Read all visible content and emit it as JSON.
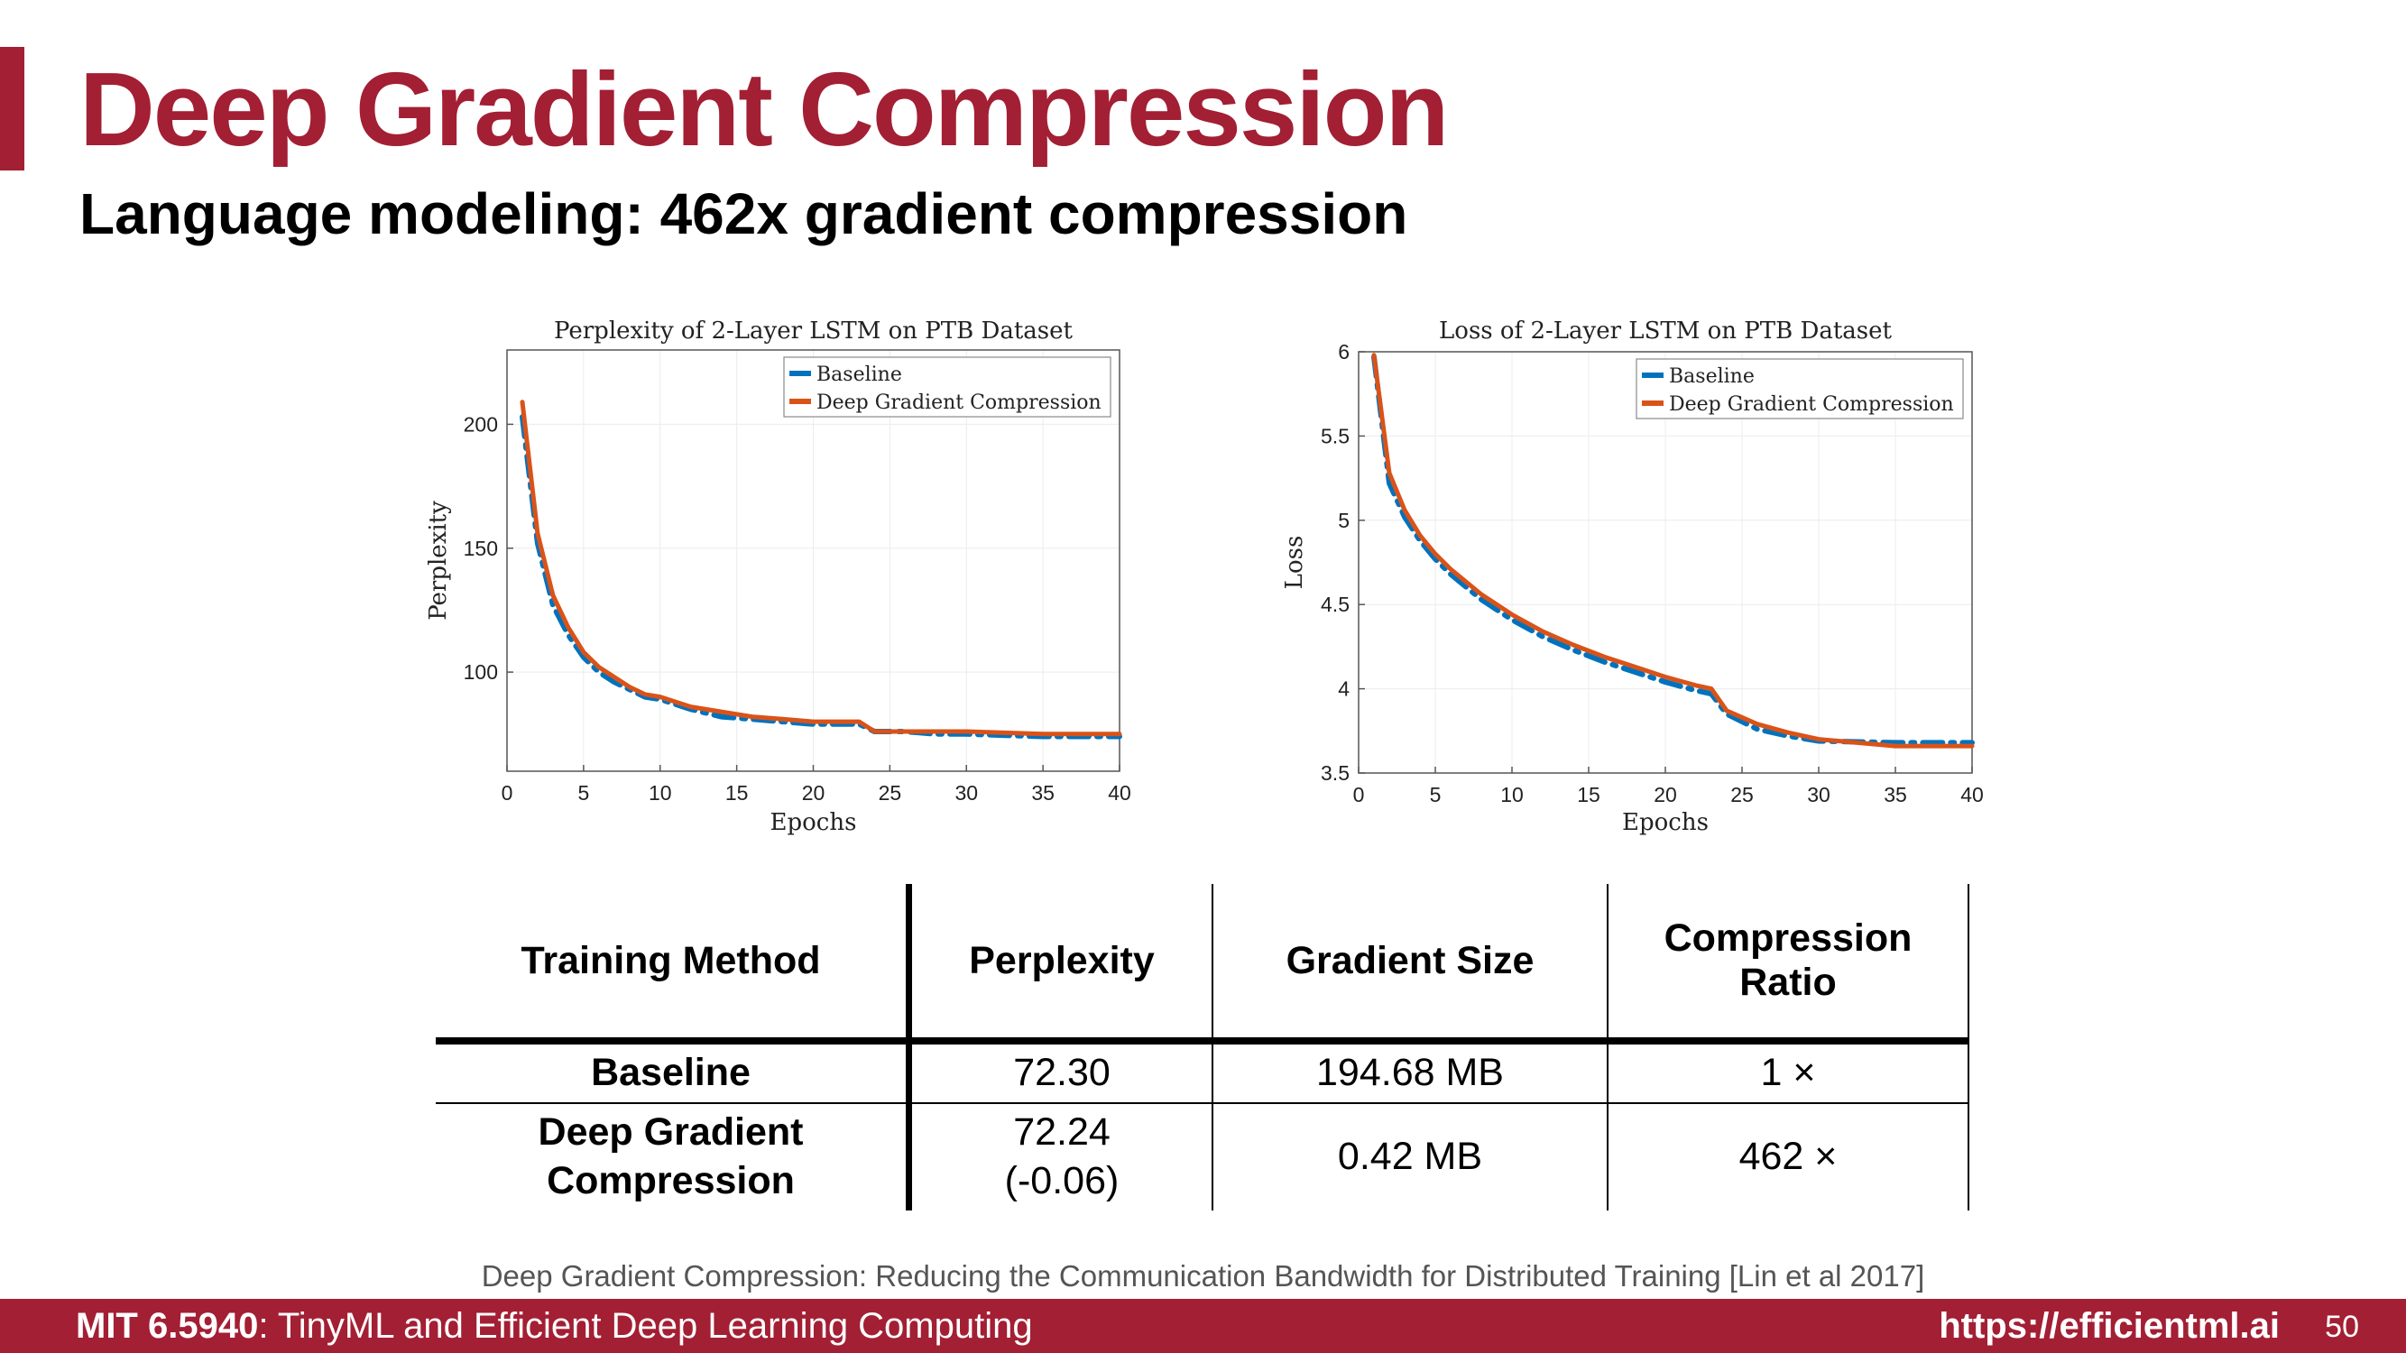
{
  "slide": {
    "title": "Deep Gradient Compression",
    "subtitle": "Language modeling: 462x gradient compression"
  },
  "chart_data": [
    {
      "type": "line",
      "title": "Perplexity of 2-Layer LSTM on PTB Dataset",
      "xlabel": "Epochs",
      "ylabel": "Perplexity",
      "xlim": [
        0,
        40
      ],
      "ylim": [
        60,
        230
      ],
      "xticks": [
        0,
        5,
        10,
        15,
        20,
        25,
        30,
        35,
        40
      ],
      "yticks": [
        100,
        150,
        200
      ],
      "grid": true,
      "legend": "top-right",
      "series": [
        {
          "name": "Baseline",
          "color": "#0072bd",
          "dash": "dash-dot",
          "x": [
            1,
            2,
            3,
            4,
            5,
            6,
            7,
            8,
            9,
            10,
            12,
            14,
            16,
            18,
            20,
            22,
            23,
            24,
            26,
            28,
            30,
            35,
            40
          ],
          "y": [
            203,
            152,
            127,
            115,
            106,
            100,
            96,
            93,
            90,
            89,
            85,
            82,
            81,
            80,
            79,
            79,
            79,
            76,
            76,
            75,
            75,
            74,
            74
          ]
        },
        {
          "name": "Deep Gradient Compression",
          "color": "#d95319",
          "dash": "solid",
          "x": [
            1,
            2,
            3,
            4,
            5,
            6,
            7,
            8,
            9,
            10,
            12,
            14,
            16,
            18,
            20,
            22,
            23,
            24,
            26,
            28,
            30,
            35,
            40
          ],
          "y": [
            209,
            156,
            131,
            118,
            108,
            102,
            98,
            94,
            91,
            90,
            86,
            84,
            82,
            81,
            80,
            80,
            80,
            76,
            76,
            76,
            76,
            75,
            75
          ]
        }
      ]
    },
    {
      "type": "line",
      "title": "Loss of 2-Layer LSTM on PTB Dataset",
      "xlabel": "Epochs",
      "ylabel": "Loss",
      "xlim": [
        0,
        40
      ],
      "ylim": [
        3.5,
        6
      ],
      "xticks": [
        0,
        5,
        10,
        15,
        20,
        25,
        30,
        35,
        40
      ],
      "yticks": [
        "3.5",
        "4",
        "4.5",
        "5",
        "5.5",
        "6"
      ],
      "grid": true,
      "legend": "top-right",
      "series": [
        {
          "name": "Baseline",
          "color": "#0072bd",
          "dash": "dash-dot",
          "x": [
            1,
            2,
            3,
            4,
            5,
            6,
            8,
            10,
            12,
            14,
            16,
            18,
            20,
            22,
            23,
            24,
            26,
            28,
            30,
            35,
            40
          ],
          "y": [
            5.97,
            5.22,
            5.02,
            4.88,
            4.77,
            4.68,
            4.53,
            4.41,
            4.31,
            4.23,
            4.16,
            4.1,
            4.04,
            3.99,
            3.97,
            3.85,
            3.76,
            3.72,
            3.69,
            3.68,
            3.68
          ]
        },
        {
          "name": "Deep Gradient Compression",
          "color": "#d95319",
          "dash": "solid",
          "x": [
            1,
            2,
            3,
            4,
            5,
            6,
            8,
            10,
            12,
            14,
            16,
            18,
            20,
            22,
            23,
            24,
            26,
            28,
            30,
            35,
            40
          ],
          "y": [
            5.98,
            5.28,
            5.06,
            4.91,
            4.8,
            4.71,
            4.56,
            4.44,
            4.34,
            4.26,
            4.19,
            4.13,
            4.07,
            4.02,
            4.0,
            3.87,
            3.79,
            3.74,
            3.7,
            3.66,
            3.66
          ]
        }
      ]
    }
  ],
  "table": {
    "headers": [
      "Training Method",
      "Perplexity",
      "Gradient Size",
      "Compression Ratio"
    ],
    "rows": [
      {
        "method": "Baseline",
        "perplexity": "72.30",
        "perplexity_delta": "",
        "gradient_size": "194.68 MB",
        "ratio": "1 ×"
      },
      {
        "method": "Deep Gradient Compression",
        "perplexity": "72.24",
        "perplexity_delta": "(-0.06)",
        "gradient_size": "0.42 MB",
        "ratio": "462 ×"
      }
    ]
  },
  "citation": "Deep Gradient Compression: Reducing the Communication Bandwidth for Distributed Training [Lin et al 2017]",
  "footer": {
    "course_code": "MIT 6.5940",
    "course_name": ": TinyML and Efficient Deep Learning Computing",
    "url": "https://efficientml.ai",
    "page": "50"
  },
  "colors": {
    "accent": "#a31f34",
    "baseline": "#0072bd",
    "dgc": "#d95319"
  }
}
